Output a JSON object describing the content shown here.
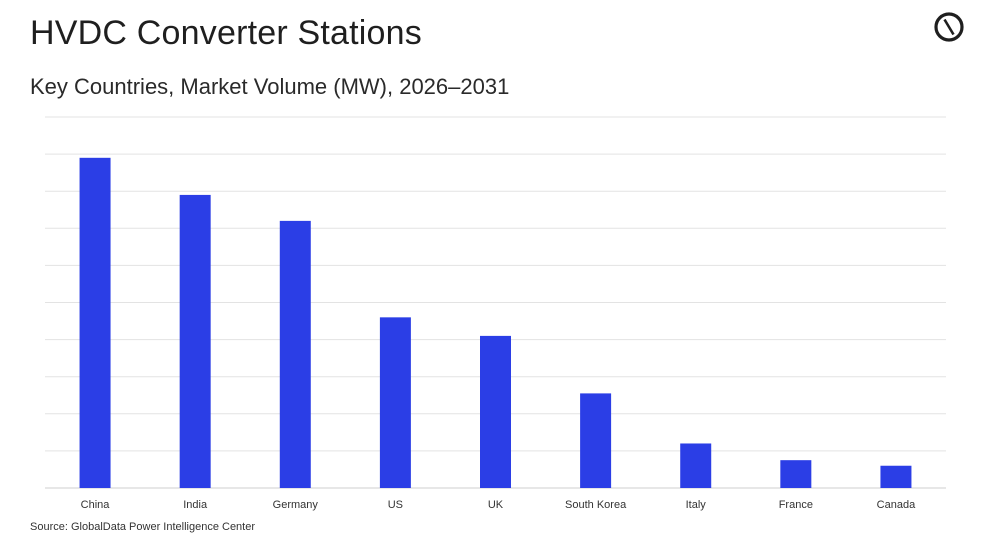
{
  "header": {
    "title": "HVDC Converter Stations",
    "subtitle": "Key Countries, Market Volume (MW), 2026–2031"
  },
  "logo": {
    "icon": "globaldata-logo-icon"
  },
  "source": "Source: GlobalData Power Intelligence Center",
  "colors": {
    "bar": "#2b3ee6",
    "grid": "#e3e3e3",
    "axis": "#cfcfcf",
    "text": "#333333"
  },
  "chart_data": {
    "type": "bar",
    "title": "HVDC Converter Stations",
    "subtitle": "Key Countries, Market Volume (MW), 2026–2031",
    "categories": [
      "China",
      "India",
      "Germany",
      "US",
      "UK",
      "South Korea",
      "Italy",
      "France",
      "Canada"
    ],
    "values": [
      89,
      79,
      72,
      46,
      41,
      25.5,
      12,
      7.5,
      6
    ],
    "ylim": [
      0,
      100
    ],
    "grid": true,
    "y_tick_labels_shown": false,
    "legend": "none"
  }
}
